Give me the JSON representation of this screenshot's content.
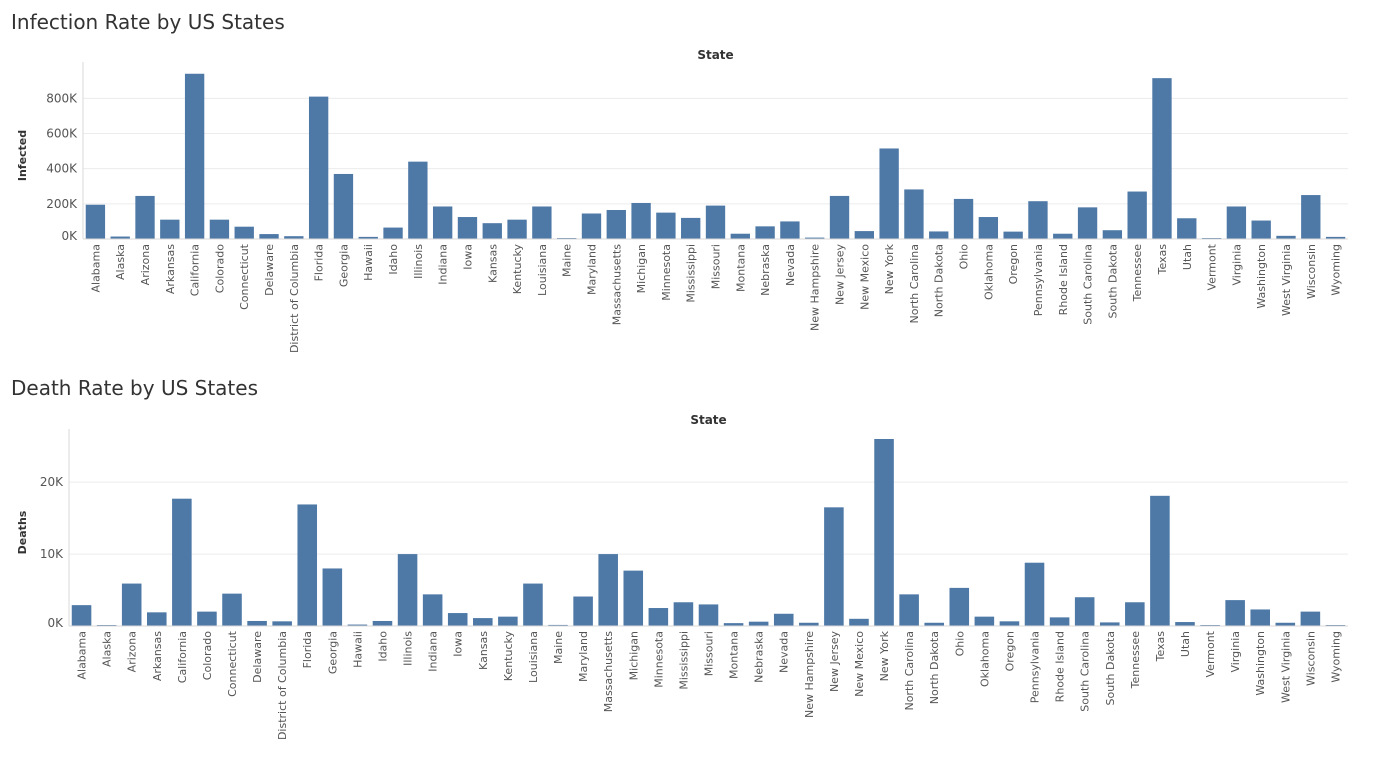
{
  "colors": {
    "bar": "#4e79a7",
    "grid": "#ececec",
    "axis": "#d9d9d9",
    "text": "#555555",
    "title": "#333333"
  },
  "chart_data": [
    {
      "type": "bar",
      "title": "Infection Rate by US States",
      "header": "State",
      "xlabel": "",
      "ylabel": "Infected",
      "ylim": [
        0,
        950000
      ],
      "yticks": [
        0,
        200000,
        400000,
        600000,
        800000
      ],
      "ytick_labels": [
        "0K",
        "200K",
        "400K",
        "600K",
        "800K"
      ],
      "grid": true,
      "categories": [
        "Alabama",
        "Alaska",
        "Arizona",
        "Arkansas",
        "California",
        "Colorado",
        "Connecticut",
        "Delaware",
        "District of Columbia",
        "Florida",
        "Georgia",
        "Hawaii",
        "Idaho",
        "Illinois",
        "Indiana",
        "Iowa",
        "Kansas",
        "Kentucky",
        "Louisiana",
        "Maine",
        "Maryland",
        "Massachusetts",
        "Michigan",
        "Minnesota",
        "Mississippi",
        "Missouri",
        "Montana",
        "Nebraska",
        "Nevada",
        "New Hampshire",
        "New Jersey",
        "New Mexico",
        "New York",
        "North Carolina",
        "North Dakota",
        "Ohio",
        "Oklahoma",
        "Oregon",
        "Pennsylvania",
        "Rhode Island",
        "South Carolina",
        "South Dakota",
        "Tennessee",
        "Texas",
        "Utah",
        "Vermont",
        "Virginia",
        "Washington",
        "West Virginia",
        "Wisconsin",
        "Wyoming"
      ],
      "values": [
        195000,
        14000,
        245000,
        110000,
        940000,
        110000,
        70000,
        28000,
        16000,
        810000,
        370000,
        12000,
        65000,
        440000,
        185000,
        125000,
        90000,
        110000,
        185000,
        5000,
        145000,
        165000,
        205000,
        150000,
        120000,
        190000,
        30000,
        72000,
        100000,
        8000,
        245000,
        45000,
        515000,
        282000,
        43000,
        228000,
        125000,
        42000,
        215000,
        30000,
        180000,
        50000,
        270000,
        915000,
        118000,
        2000,
        185000,
        105000,
        18000,
        250000,
        12000
      ]
    },
    {
      "type": "bar",
      "title": "Death Rate by US States",
      "header": "State",
      "xlabel": "",
      "ylabel": "Deaths",
      "ylim": [
        0,
        26000
      ],
      "yticks": [
        0,
        10000,
        20000
      ],
      "ytick_labels": [
        "0K",
        "10K",
        "20K"
      ],
      "grid": true,
      "categories": [
        "Alabama",
        "Alaska",
        "Arizona",
        "Arkansas",
        "California",
        "Colorado",
        "Connecticut",
        "Delaware",
        "District of Columbia",
        "Florida",
        "Georgia",
        "Hawaii",
        "Idaho",
        "Illinois",
        "Indiana",
        "Iowa",
        "Kansas",
        "Kentucky",
        "Louisiana",
        "Maine",
        "Maryland",
        "Massachusetts",
        "Michigan",
        "Minnesota",
        "Mississippi",
        "Missouri",
        "Montana",
        "Nebraska",
        "Nevada",
        "New Hampshire",
        "New Jersey",
        "New Mexico",
        "New York",
        "North Carolina",
        "North Dakota",
        "Ohio",
        "Oklahoma",
        "Oregon",
        "Pennsylvania",
        "Rhode Island",
        "South Carolina",
        "South Dakota",
        "Tennessee",
        "Texas",
        "Utah",
        "Vermont",
        "Virginia",
        "Washington",
        "West Virginia",
        "Wisconsin",
        "Wyoming"
      ],
      "values": [
        2900,
        100,
        5900,
        1900,
        17700,
        2000,
        4500,
        700,
        650,
        16900,
        8000,
        200,
        700,
        10000,
        4400,
        1800,
        1100,
        1300,
        5900,
        150,
        4100,
        10000,
        7700,
        2500,
        3300,
        3000,
        400,
        600,
        1700,
        450,
        16500,
        1000,
        26000,
        4400,
        450,
        5300,
        1300,
        650,
        8800,
        1200,
        4000,
        500,
        3300,
        18100,
        550,
        60,
        3600,
        2300,
        450,
        2000,
        100
      ]
    }
  ]
}
